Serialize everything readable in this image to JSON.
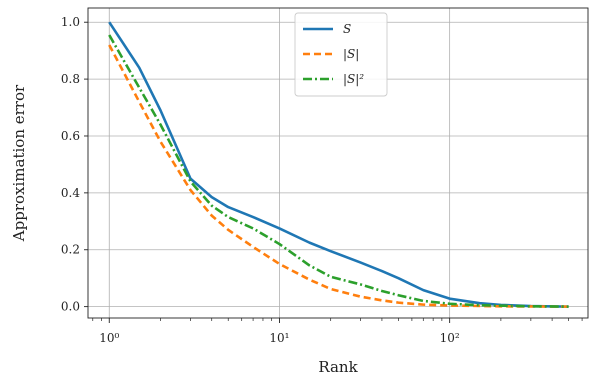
{
  "chart_data": {
    "type": "line",
    "title": "",
    "xlabel": "Rank",
    "ylabel": "Approximation error",
    "xscale": "log",
    "xlim": [
      0.75,
      650
    ],
    "ylim": [
      -0.04,
      1.05
    ],
    "xticks": [
      1,
      10,
      100
    ],
    "xtick_labels": [
      "10⁰",
      "10¹",
      "10²"
    ],
    "yticks": [
      0.0,
      0.2,
      0.4,
      0.6,
      0.8,
      1.0
    ],
    "ytick_labels": [
      "0.0",
      "0.2",
      "0.4",
      "0.6",
      "0.8",
      "1.0"
    ],
    "grid": true,
    "legend_position": "top-center",
    "series": [
      {
        "name": "S",
        "color": "#1f77b4",
        "dash": "solid",
        "points": [
          [
            1,
            1.0
          ],
          [
            1.5,
            0.84
          ],
          [
            2,
            0.69
          ],
          [
            3,
            0.45
          ],
          [
            4,
            0.385
          ],
          [
            5,
            0.35
          ],
          [
            7,
            0.315
          ],
          [
            10,
            0.275
          ],
          [
            15,
            0.225
          ],
          [
            20,
            0.195
          ],
          [
            30,
            0.155
          ],
          [
            40,
            0.125
          ],
          [
            50,
            0.1
          ],
          [
            70,
            0.058
          ],
          [
            100,
            0.028
          ],
          [
            150,
            0.012
          ],
          [
            200,
            0.006
          ],
          [
            300,
            0.002
          ],
          [
            500,
            0.0
          ]
        ]
      },
      {
        "name": "|S|",
        "color": "#ff7f0e",
        "dash": "dashed",
        "points": [
          [
            1,
            0.92
          ],
          [
            1.5,
            0.72
          ],
          [
            2,
            0.58
          ],
          [
            3,
            0.41
          ],
          [
            4,
            0.32
          ],
          [
            5,
            0.27
          ],
          [
            7,
            0.21
          ],
          [
            10,
            0.15
          ],
          [
            15,
            0.095
          ],
          [
            20,
            0.062
          ],
          [
            30,
            0.035
          ],
          [
            40,
            0.022
          ],
          [
            50,
            0.014
          ],
          [
            70,
            0.007
          ],
          [
            100,
            0.004
          ],
          [
            200,
            0.001
          ],
          [
            500,
            0.0
          ]
        ]
      },
      {
        "name": "|S|²",
        "color": "#2ca02c",
        "dash": "dashdot",
        "points": [
          [
            1,
            0.955
          ],
          [
            1.5,
            0.77
          ],
          [
            2,
            0.64
          ],
          [
            3,
            0.44
          ],
          [
            4,
            0.355
          ],
          [
            5,
            0.315
          ],
          [
            7,
            0.275
          ],
          [
            10,
            0.22
          ],
          [
            15,
            0.145
          ],
          [
            20,
            0.105
          ],
          [
            25,
            0.09
          ],
          [
            30,
            0.078
          ],
          [
            40,
            0.055
          ],
          [
            50,
            0.04
          ],
          [
            70,
            0.02
          ],
          [
            100,
            0.01
          ],
          [
            150,
            0.005
          ],
          [
            300,
            0.001
          ],
          [
            500,
            0.0
          ]
        ]
      }
    ]
  }
}
